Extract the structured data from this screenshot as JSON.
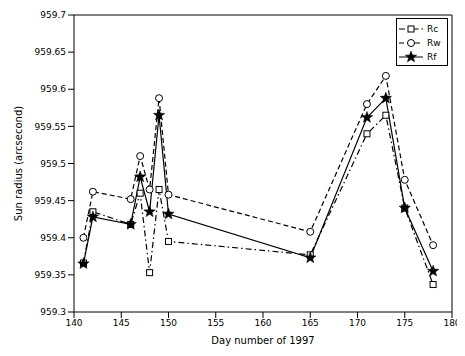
{
  "chart_data": {
    "type": "line",
    "x_label": "Day number of 1997",
    "y_label": "Sun radius (arcsecond)",
    "x": [
      141,
      142,
      146,
      147,
      148,
      149,
      150,
      165,
      171,
      173,
      175,
      178
    ],
    "series": [
      {
        "name": "Rc",
        "color": "#000000",
        "marker": "square",
        "line_style": "dashdot",
        "values": [
          959.366,
          959.435,
          959.418,
          959.46,
          959.353,
          959.465,
          959.395,
          959.377,
          959.54,
          959.565,
          959.44,
          959.337
        ]
      },
      {
        "name": "Rw",
        "color": "#000000",
        "marker": "circle",
        "line_style": "dashed",
        "values": [
          959.4,
          959.462,
          959.452,
          959.51,
          959.465,
          959.588,
          959.458,
          959.408,
          959.58,
          959.618,
          959.478,
          959.39
        ]
      },
      {
        "name": "Rf",
        "color": "#000000",
        "marker": "star",
        "line_style": "solid",
        "values": [
          959.365,
          959.428,
          959.418,
          959.482,
          959.435,
          959.565,
          959.432,
          959.373,
          959.562,
          959.588,
          959.44,
          959.355
        ]
      }
    ],
    "xlim": [
      140,
      180
    ],
    "xticks": [
      140,
      145,
      150,
      155,
      160,
      165,
      170,
      175,
      180
    ],
    "ylim": [
      959.3,
      959.7
    ],
    "yticks": [
      959.3,
      959.35,
      959.4,
      959.45,
      959.5,
      959.55,
      959.6,
      959.65,
      959.7
    ],
    "legend": "upper right"
  }
}
